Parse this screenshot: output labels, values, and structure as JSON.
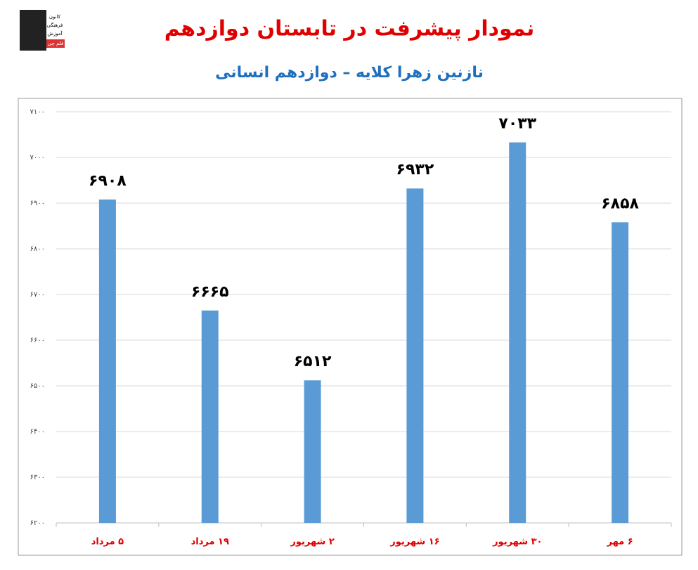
{
  "logo": {
    "lines": [
      "کانون",
      "فرهنگی",
      "آموزش"
    ],
    "badge": "قلم چی"
  },
  "chart_data": {
    "type": "bar",
    "title": "نمودار پیشرفت در تابستان دوازدهم",
    "subtitle": "نازنین زهرا کلایه – دوازدهم انسانی",
    "categories": [
      "۵ مرداد",
      "۱۹ مرداد",
      "۲ شهریور",
      "۱۶ شهریور",
      "۳۰ شهریور",
      "۶ مهر"
    ],
    "values": [
      6908,
      6665,
      6512,
      6932,
      7033,
      6858
    ],
    "value_labels": [
      "۶۹۰۸",
      "۶۶۶۵",
      "۶۵۱۲",
      "۶۹۳۲",
      "۷۰۳۳",
      "۶۸۵۸"
    ],
    "color": "#5b9bd5",
    "ylim": [
      6200,
      7100
    ],
    "yticks": [
      {
        "value": 6200,
        "label": "۶۲۰۰"
      },
      {
        "value": 6300,
        "label": "۶۳۰۰"
      },
      {
        "value": 6400,
        "label": "۶۴۰۰"
      },
      {
        "value": 6500,
        "label": "۶۵۰۰"
      },
      {
        "value": 6600,
        "label": "۶۶۰۰"
      },
      {
        "value": 6700,
        "label": "۶۷۰۰"
      },
      {
        "value": 6800,
        "label": "۶۸۰۰"
      },
      {
        "value": 6900,
        "label": "۶۹۰۰"
      },
      {
        "value": 7000,
        "label": "۷۰۰۰"
      },
      {
        "value": 7100,
        "label": "۷۱۰۰"
      }
    ],
    "grid": true
  }
}
